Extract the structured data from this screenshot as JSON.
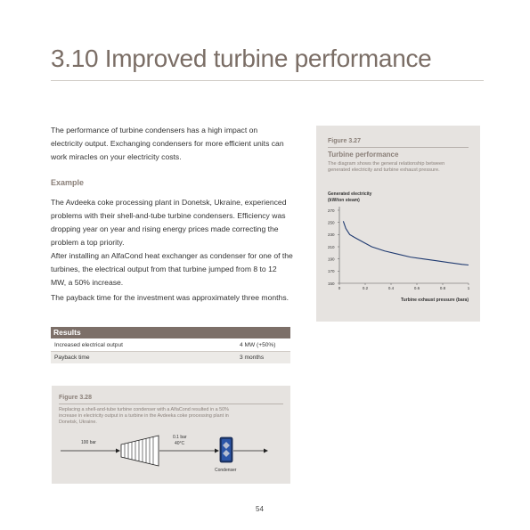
{
  "header": {
    "title": "3.10 Improved turbine performance"
  },
  "intro": "The performance of turbine condensers has a high impact on electricity output. Exchanging condensers for more efficient units can work miracles on your electricity costs.",
  "example": {
    "heading": "Example",
    "paragraphs": [
      "The Avdeeka coke processing plant in Donetsk, Ukraine, experienced problems with their shell-and-tube turbine condensers. Efficiency was dropping year on year and rising energy prices made correcting the problem a top priority.",
      "After installing an AlfaCond heat exchanger as condenser for one of the turbines, the electrical output from that turbine jumped from 8 to 12 MW, a 50% increase.",
      "The payback time for the investment was approximately three months."
    ]
  },
  "results": {
    "heading": "Results",
    "rows": [
      {
        "label": "Increased electrical output",
        "value": "4 MW (+50%)"
      },
      {
        "label": "Payback time",
        "value": "3 months"
      }
    ]
  },
  "figure27": {
    "label": "Figure 3.27",
    "title": "Turbine performance",
    "description_lines": [
      "The diagram shows the general relationship between",
      "generated electricity and turbine exhaust pressure."
    ]
  },
  "chart_data": {
    "type": "line",
    "ylabel_lines": [
      "Generated electricity",
      "(kW/ton steam)"
    ],
    "xlabel": "Turbine exhaust pressure (bara)",
    "x_ticks": [
      "0",
      "0.2",
      "0.4",
      "0.6",
      "0.8",
      "1"
    ],
    "y_ticks": [
      "270",
      "250",
      "230",
      "210",
      "190",
      "170",
      "150"
    ],
    "xlim": [
      0,
      1
    ],
    "ylim": [
      150,
      270
    ],
    "grid": false,
    "series": [
      {
        "values": [
          {
            "x": 0.03,
            "y": 252
          },
          {
            "x": 0.05,
            "y": 240
          },
          {
            "x": 0.08,
            "y": 230
          },
          {
            "x": 0.12,
            "y": 225
          },
          {
            "x": 0.18,
            "y": 218
          },
          {
            "x": 0.25,
            "y": 210
          },
          {
            "x": 0.35,
            "y": 203
          },
          {
            "x": 0.45,
            "y": 198
          },
          {
            "x": 0.55,
            "y": 193
          },
          {
            "x": 0.65,
            "y": 190
          },
          {
            "x": 0.75,
            "y": 187
          },
          {
            "x": 0.85,
            "y": 184
          },
          {
            "x": 0.95,
            "y": 181
          },
          {
            "x": 1.0,
            "y": 180
          }
        ]
      }
    ],
    "color": "#1f3a70"
  },
  "figure28": {
    "label": "Figure 3.28",
    "description_lines": [
      "Replacing a shell-and-tube turbine condenser with a AlfaCond resulted in a 50%",
      "increase in electricity output in a turbine in the Avdeeka coke processing plant in",
      "Donetsk, Ukraine."
    ],
    "inlet_label": "100 bar",
    "outlet_label_lines": [
      "0.1 bar",
      "40°C"
    ],
    "condenser_label": "Condenser"
  },
  "page_number": "54"
}
